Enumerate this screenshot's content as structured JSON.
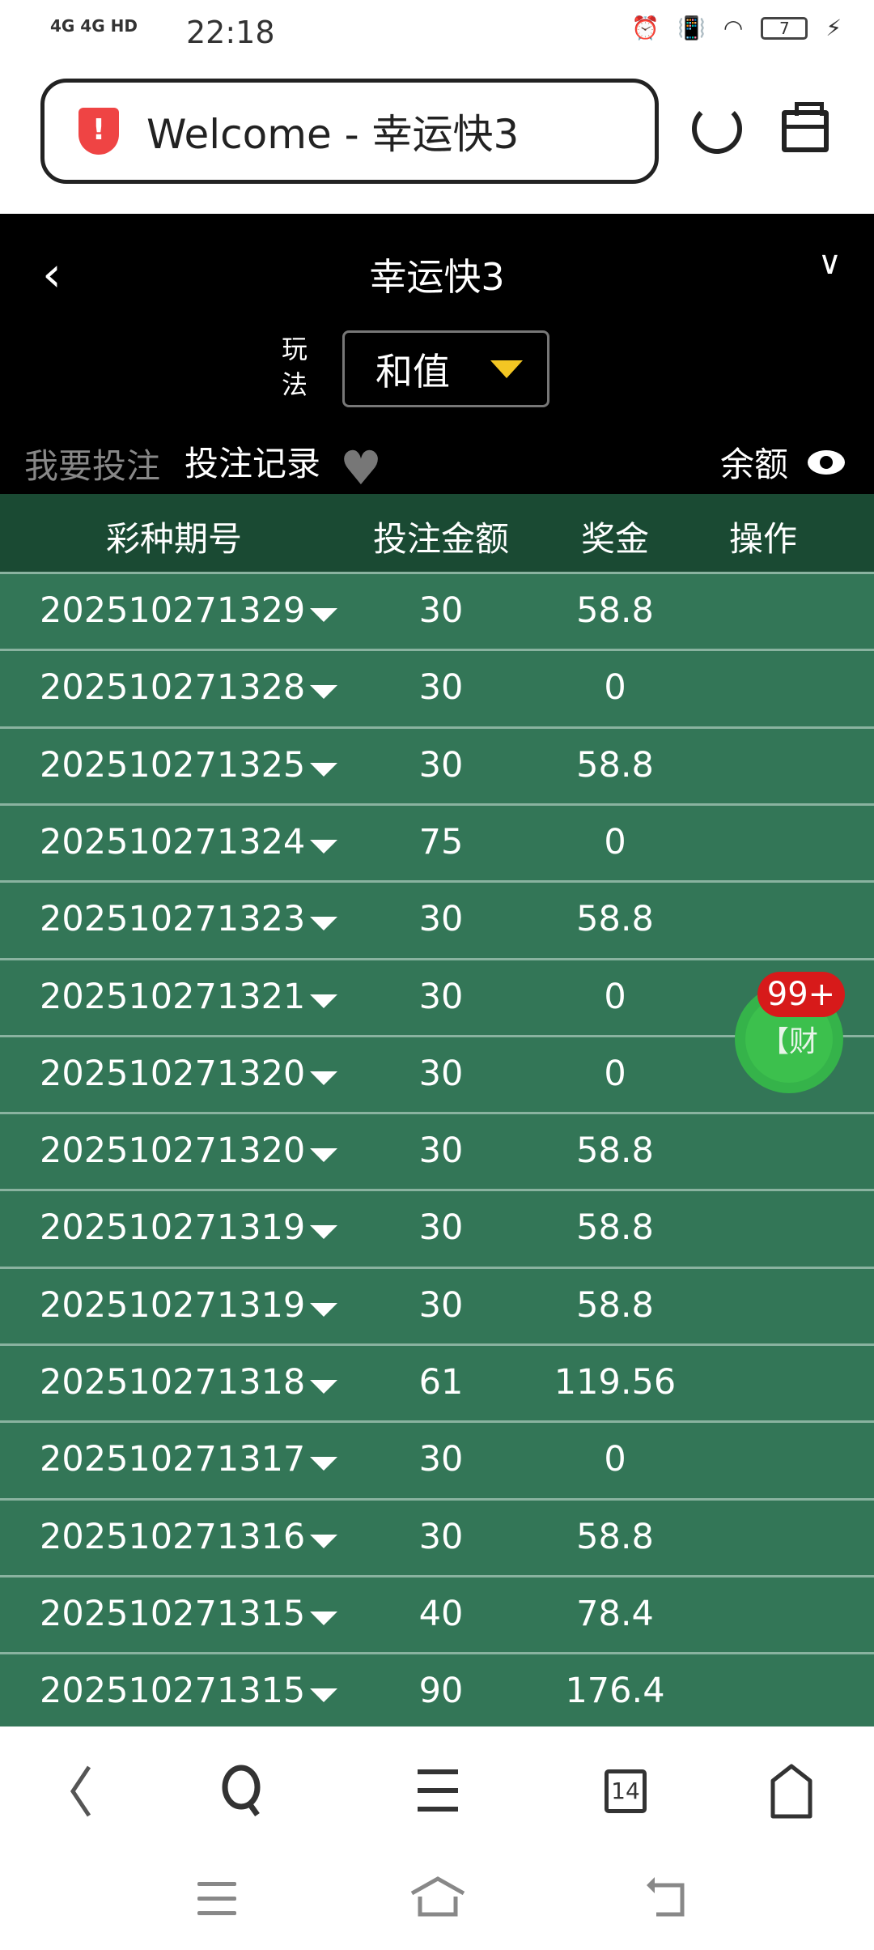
{
  "status_bar": {
    "time": "22:18",
    "signal": "4G 4G HD",
    "battery": "7"
  },
  "browser": {
    "url_title": "Welcome - 幸运快3",
    "icons": [
      "shield-alert-icon",
      "reload-icon",
      "toolbox-icon"
    ]
  },
  "app": {
    "title": "幸运快3",
    "play_label": "玩法",
    "play_value": "和值",
    "tabs": [
      "我要投注",
      "投注记录"
    ],
    "balance_label": "余额"
  },
  "table": {
    "headers": [
      "彩种期号",
      "投注金额",
      "奖金",
      "操作"
    ],
    "rows": [
      [
        "202510271329",
        "30",
        "58.8"
      ],
      [
        "202510271328",
        "30",
        "0"
      ],
      [
        "202510271325",
        "30",
        "58.8"
      ],
      [
        "202510271324",
        "75",
        "0"
      ],
      [
        "202510271323",
        "30",
        "58.8"
      ],
      [
        "202510271321",
        "30",
        "0"
      ],
      [
        "202510271320",
        "30",
        "0"
      ],
      [
        "202510271320",
        "30",
        "58.8"
      ],
      [
        "202510271319",
        "30",
        "58.8"
      ],
      [
        "202510271319",
        "30",
        "58.8"
      ],
      [
        "202510271318",
        "61",
        "119.56"
      ],
      [
        "202510271317",
        "30",
        "0"
      ],
      [
        "202510271316",
        "30",
        "58.8"
      ],
      [
        "202510271315",
        "40",
        "78.4"
      ],
      [
        "202510271315",
        "90",
        "176.4"
      ]
    ]
  },
  "fab": {
    "label": "【财",
    "badge": "99+"
  },
  "bottom_nav": {
    "tab_count": "14"
  },
  "colors": {
    "row": "#337657",
    "header": "#1a4a33",
    "accent": "#f3c623",
    "badge": "#d71a1a"
  }
}
